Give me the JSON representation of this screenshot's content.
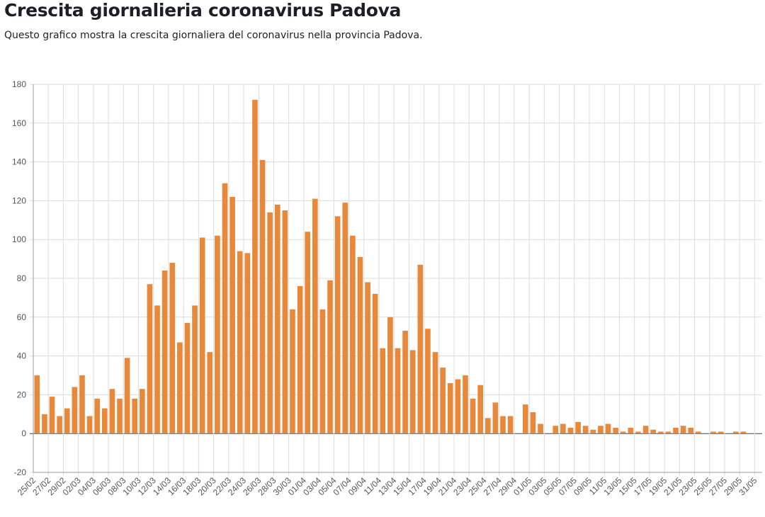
{
  "header": {
    "title": "Crescita giornalieria coronavirus Padova",
    "subtitle": "Questo grafico mostra la crescita giornaliera del coronavirus nella provincia Padova."
  },
  "colors": {
    "bar": "#e8883a",
    "grid": "#dcdcdc",
    "axis": "#9a9a9a",
    "zero_line": "#444444"
  },
  "chart_data": {
    "type": "bar",
    "title": "",
    "xlabel": "",
    "ylabel": "",
    "ylim": [
      -20,
      180
    ],
    "y_ticks": [
      -20,
      0,
      20,
      40,
      60,
      80,
      100,
      120,
      140,
      160,
      180
    ],
    "grid": true,
    "legend": "none",
    "categories": [
      "25/02",
      "26/02",
      "27/02",
      "28/02",
      "29/02",
      "01/03",
      "02/03",
      "03/03",
      "04/03",
      "05/03",
      "06/03",
      "07/03",
      "08/03",
      "09/03",
      "10/03",
      "11/03",
      "12/03",
      "13/03",
      "14/03",
      "15/03",
      "16/03",
      "17/03",
      "18/03",
      "19/03",
      "20/03",
      "21/03",
      "22/03",
      "23/03",
      "24/03",
      "25/03",
      "26/03",
      "27/03",
      "28/03",
      "29/03",
      "30/03",
      "31/03",
      "01/04",
      "02/04",
      "03/04",
      "04/04",
      "05/04",
      "06/04",
      "07/04",
      "08/04",
      "09/04",
      "10/04",
      "11/04",
      "12/04",
      "13/04",
      "14/04",
      "15/04",
      "16/04",
      "17/04",
      "18/04",
      "19/04",
      "20/04",
      "21/04",
      "22/04",
      "23/04",
      "24/04",
      "25/04",
      "26/04",
      "27/04",
      "28/04",
      "29/04",
      "30/04",
      "01/05",
      "02/05",
      "03/05",
      "04/05",
      "05/05",
      "06/05",
      "07/05",
      "08/05",
      "09/05",
      "10/05",
      "11/05",
      "12/05",
      "13/05",
      "14/05",
      "15/05",
      "16/05",
      "17/05",
      "18/05",
      "19/05",
      "20/05",
      "21/05",
      "22/05",
      "23/05",
      "24/05",
      "25/05",
      "26/05",
      "27/05",
      "28/05",
      "29/05",
      "30/05",
      "31/05"
    ],
    "x_tick_labels": [
      "25/02",
      "27/02",
      "29/02",
      "02/03",
      "04/03",
      "06/03",
      "08/03",
      "10/03",
      "12/03",
      "14/03",
      "16/03",
      "18/03",
      "20/03",
      "22/03",
      "24/03",
      "26/03",
      "28/03",
      "30/03",
      "01/04",
      "03/04",
      "05/04",
      "07/04",
      "09/04",
      "11/04",
      "13/04",
      "15/04",
      "17/04",
      "19/04",
      "21/04",
      "23/04",
      "25/04",
      "27/04",
      "29/04",
      "01/05",
      "03/05",
      "05/05",
      "07/05",
      "09/05",
      "11/05",
      "13/05",
      "15/05",
      "17/05",
      "19/05",
      "21/05",
      "23/05",
      "25/05",
      "27/05",
      "29/05",
      "31/05"
    ],
    "values": [
      30,
      10,
      19,
      9,
      13,
      24,
      30,
      9,
      18,
      13,
      23,
      18,
      39,
      18,
      23,
      77,
      66,
      84,
      88,
      47,
      57,
      66,
      101,
      42,
      102,
      129,
      122,
      94,
      93,
      172,
      141,
      114,
      118,
      115,
      64,
      76,
      104,
      121,
      64,
      79,
      112,
      119,
      102,
      91,
      78,
      72,
      44,
      60,
      44,
      53,
      43,
      87,
      54,
      42,
      34,
      26,
      28,
      30,
      18,
      25,
      8,
      16,
      9,
      9,
      0,
      15,
      11,
      5,
      0,
      4,
      5,
      3,
      6,
      4,
      2,
      4,
      5,
      3,
      1,
      3,
      1,
      4,
      2,
      1,
      1,
      3,
      4,
      3,
      1,
      0,
      1,
      1,
      0,
      1,
      1,
      0,
      0
    ]
  }
}
